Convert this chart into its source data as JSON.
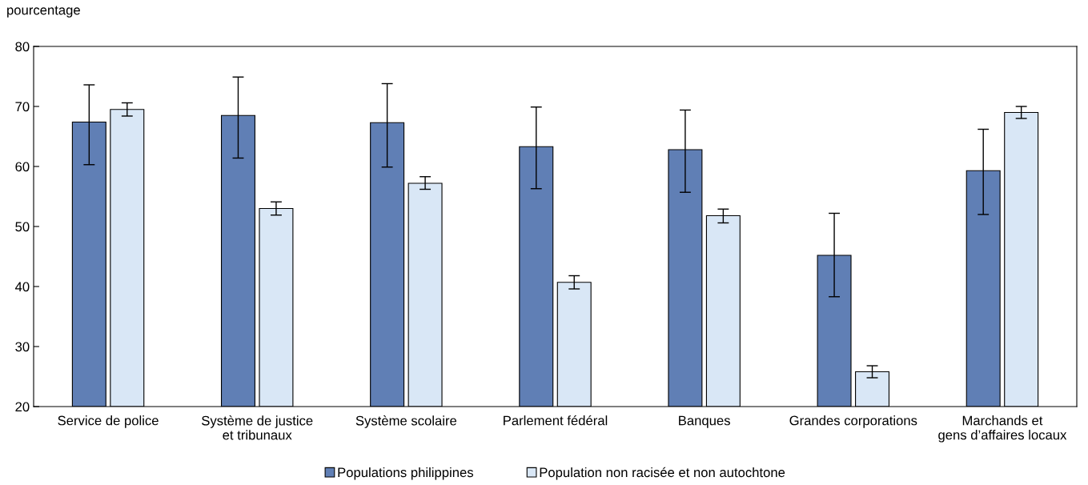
{
  "chart_data": {
    "type": "bar",
    "ylabel": "pourcentage",
    "categories": [
      "Service de police",
      "Système de justice\net tribunaux",
      "Système scolaire",
      "Parlement fédéral",
      "Banques",
      "Grandes corporations",
      "Marchands et\ngens d’affaires locaux"
    ],
    "series": [
      {
        "name": "Populations philippines",
        "color": "#607fb5",
        "values": [
          67.4,
          68.5,
          67.3,
          63.3,
          62.8,
          45.2,
          59.3
        ],
        "errors": [
          [
            60.3,
            73.6
          ],
          [
            61.4,
            74.9
          ],
          [
            59.9,
            73.8
          ],
          [
            56.3,
            69.9
          ],
          [
            55.7,
            69.4
          ],
          [
            38.3,
            52.2
          ],
          [
            52.0,
            66.2
          ]
        ]
      },
      {
        "name": "Population non racisée et non autochtone",
        "color": "#d9e7f6",
        "values": [
          69.5,
          53.0,
          57.2,
          40.7,
          51.8,
          25.8,
          69.0
        ],
        "errors": [
          [
            68.4,
            70.6
          ],
          [
            51.9,
            54.1
          ],
          [
            56.2,
            58.3
          ],
          [
            39.6,
            41.8
          ],
          [
            50.6,
            52.9
          ],
          [
            24.8,
            26.8
          ],
          [
            68.0,
            70.0
          ]
        ]
      }
    ],
    "ylim": [
      20,
      80
    ],
    "yticks": [
      20,
      30,
      40,
      50,
      60,
      70,
      80
    ],
    "grid": false,
    "legend": "bottom"
  }
}
